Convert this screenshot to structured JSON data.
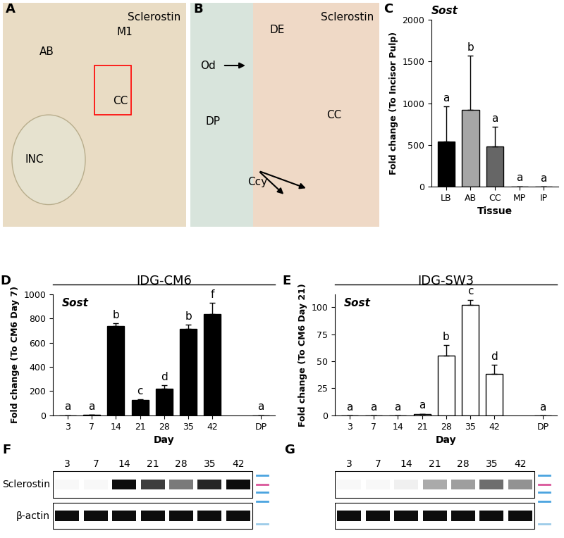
{
  "chart_data": [
    {
      "panel": "C",
      "type": "bar",
      "title": "Sost",
      "x_label": "Tissue",
      "y_label": "Fold change (To Incisor Pulp)",
      "categories": [
        "LB",
        "AB",
        "CC",
        "MP",
        "IP"
      ],
      "values": [
        540,
        920,
        480,
        5,
        1
      ],
      "errors": [
        420,
        650,
        240,
        0,
        0
      ],
      "annotations": [
        "a",
        "b",
        "a",
        "a",
        "a"
      ],
      "colors": [
        "#000000",
        "#a6a6a6",
        "#666666",
        "#555555",
        "#555555"
      ],
      "ylim": [
        0,
        2000
      ],
      "yticks": [
        0,
        500,
        1000,
        1500,
        2000
      ]
    },
    {
      "panel": "D",
      "type": "bar",
      "title": "IDG-CM6",
      "subtitle": "Sost",
      "x_label": "Day",
      "y_label": "Fold change (To CM6 Day 7)",
      "categories": [
        "3",
        "7",
        "14",
        "21",
        "28",
        "35",
        "42",
        null,
        "DP"
      ],
      "values": [
        1,
        3,
        735,
        125,
        222,
        715,
        835,
        null,
        1
      ],
      "errors": [
        0,
        0,
        25,
        8,
        25,
        35,
        95,
        null,
        0
      ],
      "annotations": [
        "a",
        "a",
        "b",
        "c",
        "d",
        "b",
        "f",
        null,
        "a"
      ],
      "color": "#000000",
      "ylim": [
        0,
        1000
      ],
      "yticks": [
        0,
        200,
        400,
        600,
        800,
        1000
      ]
    },
    {
      "panel": "E",
      "type": "bar",
      "title": "IDG-SW3",
      "subtitle": "Sost",
      "x_label": "Day",
      "y_label": "Fold change (To CM6 Day 21)",
      "categories": [
        "3",
        "7",
        "14",
        "21",
        "28",
        "35",
        "42",
        null,
        "DP"
      ],
      "values": [
        0,
        0,
        0,
        1,
        55,
        102,
        38,
        null,
        0
      ],
      "errors": [
        0,
        0,
        0,
        0.5,
        10,
        5,
        9,
        null,
        0
      ],
      "annotations": [
        "a",
        "a",
        "a",
        "a",
        "b",
        "c",
        "d",
        null,
        "a"
      ],
      "color": "#ffffff",
      "ylim": [
        0,
        112
      ],
      "yticks": [
        0,
        25,
        50,
        75,
        100
      ]
    }
  ],
  "images": [
    {
      "panel": "A",
      "stain": "Sclerostin",
      "labels": [
        "M1",
        "AB",
        "CC",
        "INC"
      ]
    },
    {
      "panel": "B",
      "stain": "Sclerostin",
      "labels": [
        "DE",
        "Od",
        "DP",
        "CC",
        "Ccy"
      ]
    }
  ],
  "blots": [
    {
      "panel": "F",
      "lanes": [
        "3",
        "7",
        "14",
        "21",
        "28",
        "35",
        "42"
      ],
      "row_labels": [
        "Sclerostin",
        "β-actin"
      ],
      "intensity": [
        [
          0.03,
          0.03,
          1.0,
          0.8,
          0.55,
          0.9,
          1.0
        ],
        [
          1,
          1,
          1,
          1,
          1,
          1,
          1
        ]
      ]
    },
    {
      "panel": "G",
      "lanes": [
        "3",
        "7",
        "14",
        "21",
        "28",
        "35",
        "42"
      ],
      "intensity": [
        [
          0.03,
          0.03,
          0.06,
          0.35,
          0.4,
          0.6,
          0.45
        ],
        [
          1,
          1,
          1,
          1,
          1,
          1,
          1
        ]
      ]
    }
  ]
}
